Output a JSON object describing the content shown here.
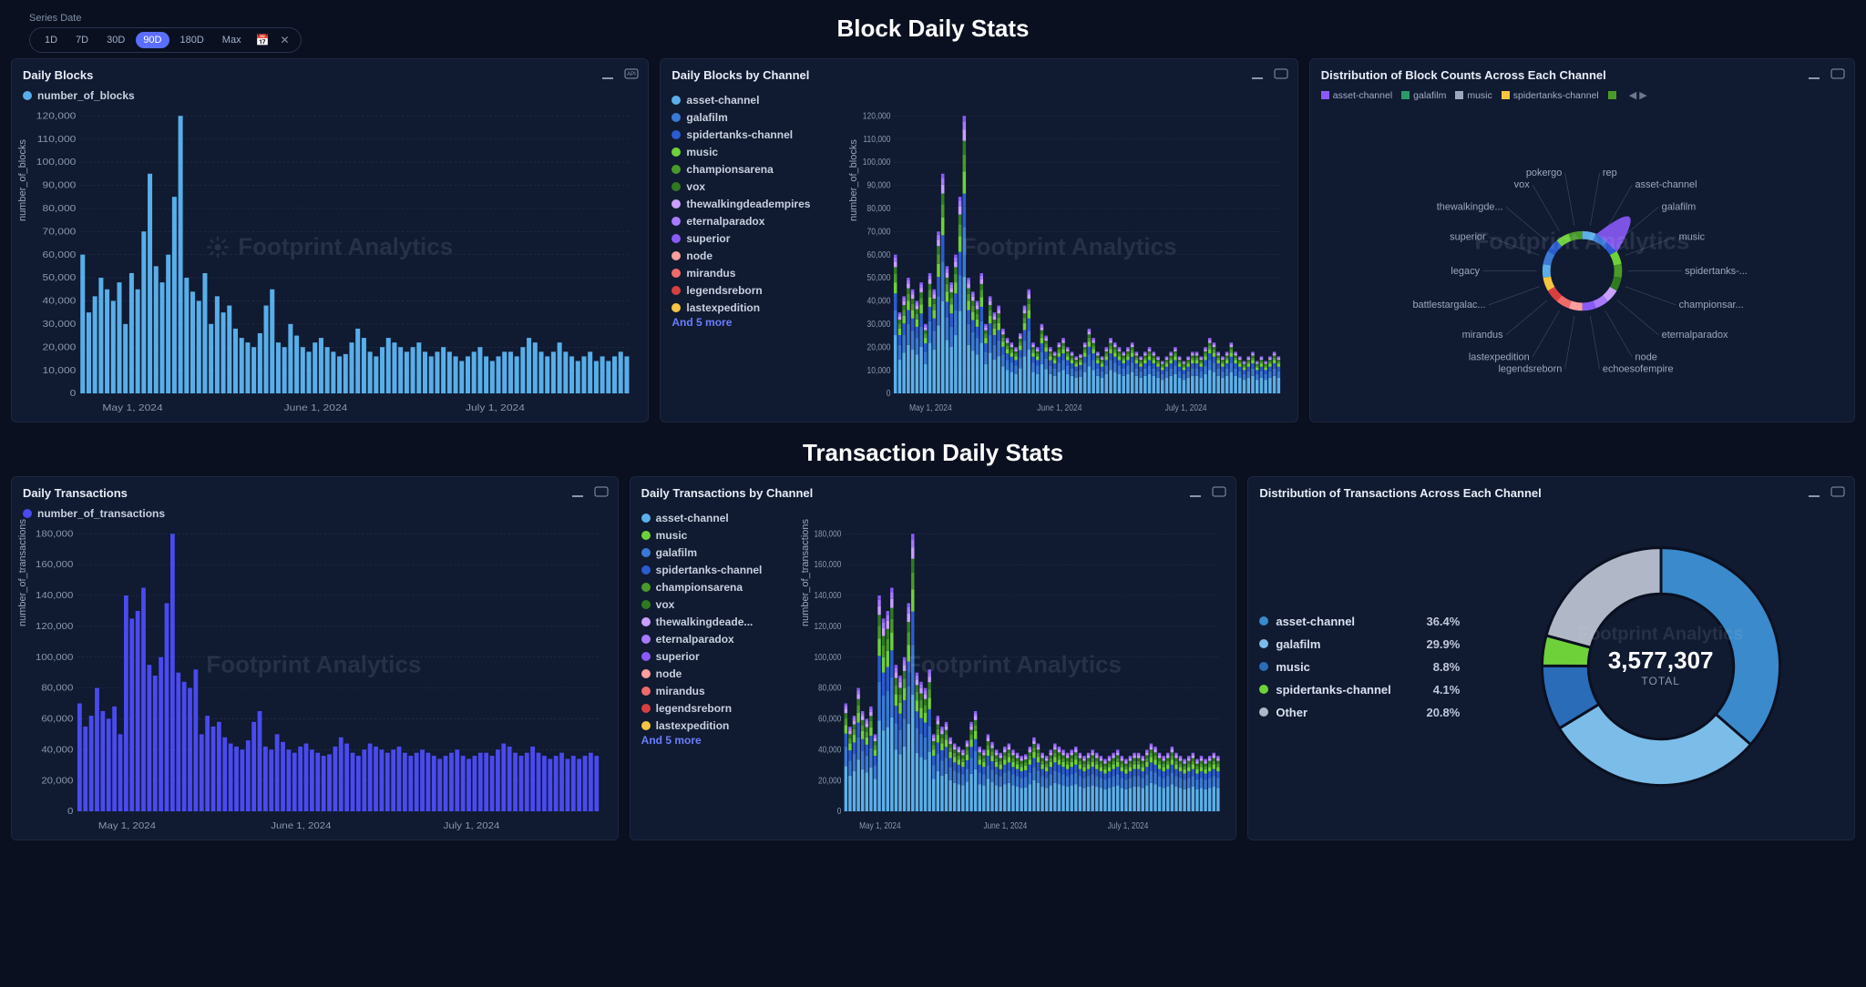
{
  "watermark": "Footprint Analytics",
  "colors": {
    "bg": "#0a1020",
    "panel": "#101a30",
    "grid": "#2a3858",
    "blockBar": "#58aee8",
    "txnBar": "#4a4af0"
  },
  "timeRange": {
    "label": "Series Date",
    "options": [
      "1D",
      "7D",
      "30D",
      "90D",
      "180D",
      "Max"
    ],
    "active": "90D"
  },
  "sections": {
    "blocks": {
      "title": "Block Daily Stats"
    },
    "txns": {
      "title": "Transaction Daily Stats"
    }
  },
  "channels": [
    {
      "name": "asset-channel",
      "color": "#5bb0ea"
    },
    {
      "name": "galafilm",
      "color": "#3a7ad6"
    },
    {
      "name": "spidertanks-channel",
      "color": "#2a5bd0"
    },
    {
      "name": "music",
      "color": "#6fd13a"
    },
    {
      "name": "championsarena",
      "color": "#4a9a2a"
    },
    {
      "name": "vox",
      "color": "#2f7a1f"
    },
    {
      "name": "thewalkingdeadempires",
      "color": "#c9a0ff"
    },
    {
      "name": "eternalparadox",
      "color": "#a77aff"
    },
    {
      "name": "superior",
      "color": "#8a5af8"
    },
    {
      "name": "node",
      "color": "#ff9e9e"
    },
    {
      "name": "mirandus",
      "color": "#f06a6a"
    },
    {
      "name": "legendsreborn",
      "color": "#d84040"
    },
    {
      "name": "lastexpedition",
      "color": "#f5c542"
    }
  ],
  "channels_more_label": "And 5 more",
  "dailyBlocks": {
    "title": "Daily Blocks",
    "series_label": "number_of_blocks",
    "ylabel": "number_of_blocks",
    "ymax": 120000,
    "ytick": 10000,
    "xticks": [
      "May 1, 2024",
      "June 1, 2024",
      "July 1, 2024"
    ],
    "values": [
      60000,
      35000,
      42000,
      50000,
      45000,
      40000,
      48000,
      30000,
      52000,
      45000,
      70000,
      95000,
      55000,
      48000,
      60000,
      85000,
      120000,
      50000,
      44000,
      40000,
      52000,
      30000,
      42000,
      35000,
      38000,
      28000,
      24000,
      22000,
      20000,
      26000,
      38000,
      45000,
      22000,
      20000,
      30000,
      25000,
      20000,
      18000,
      22000,
      24000,
      20000,
      18000,
      16000,
      17000,
      22000,
      28000,
      24000,
      18000,
      16000,
      20000,
      24000,
      22000,
      20000,
      18000,
      20000,
      22000,
      18000,
      16000,
      18000,
      20000,
      18000,
      16000,
      14000,
      16000,
      18000,
      20000,
      16000,
      14000,
      16000,
      18000,
      18000,
      16000,
      20000,
      24000,
      22000,
      18000,
      16000,
      18000,
      22000,
      18000,
      16000,
      14000,
      16000,
      18000,
      14000,
      16000,
      14000,
      16000,
      18000,
      16000
    ]
  },
  "dailyBlocksByChannel": {
    "title": "Daily Blocks by Channel",
    "ylabel": "number_of_blocks",
    "ymax": 120000,
    "ytick": 10000,
    "xticks": [
      "May 1, 2024",
      "June 1, 2024",
      "July 1, 2024"
    ]
  },
  "blockDistribution": {
    "title": "Distribution of Block Counts Across Each Channel",
    "legend": [
      {
        "name": "asset-channel",
        "color": "#8a5af8"
      },
      {
        "name": "galafilm",
        "color": "#2a9a6a"
      },
      {
        "name": "music",
        "color": "#9aa8c0"
      },
      {
        "name": "spidertanks-channel",
        "color": "#f5c542"
      }
    ],
    "spokes": [
      "rep",
      "asset-channel",
      "galafilm",
      "music",
      "spidertanks-...",
      "championsar...",
      "eternalparadox",
      "node",
      "echoesofempire",
      "legendsreborn",
      "lastexpedition",
      "mirandus",
      "battlestargalac...",
      "legacy",
      "superior",
      "thewalkingde...",
      "vox",
      "pokergo"
    ]
  },
  "dailyTxns": {
    "title": "Daily Transactions",
    "series_label": "number_of_transactions",
    "ylabel": "number_of_transactions",
    "ymax": 180000,
    "ytick": 20000,
    "xticks": [
      "May 1, 2024",
      "June 1, 2024",
      "July 1, 2024"
    ],
    "values": [
      70000,
      55000,
      62000,
      80000,
      65000,
      60000,
      68000,
      50000,
      140000,
      125000,
      130000,
      145000,
      95000,
      88000,
      100000,
      135000,
      180000,
      90000,
      84000,
      80000,
      92000,
      50000,
      62000,
      55000,
      58000,
      48000,
      44000,
      42000,
      40000,
      46000,
      58000,
      65000,
      42000,
      40000,
      50000,
      45000,
      40000,
      38000,
      42000,
      44000,
      40000,
      38000,
      36000,
      37000,
      42000,
      48000,
      44000,
      38000,
      36000,
      40000,
      44000,
      42000,
      40000,
      38000,
      40000,
      42000,
      38000,
      36000,
      38000,
      40000,
      38000,
      36000,
      34000,
      36000,
      38000,
      40000,
      36000,
      34000,
      36000,
      38000,
      38000,
      36000,
      40000,
      44000,
      42000,
      38000,
      36000,
      38000,
      42000,
      38000,
      36000,
      34000,
      36000,
      38000,
      34000,
      36000,
      34000,
      36000,
      38000,
      36000
    ]
  },
  "dailyTxnsByChannel": {
    "title": "Daily Transactions by Channel",
    "ylabel": "number_of_transactions",
    "ymax": 180000,
    "ytick": 20000,
    "xticks": [
      "May 1, 2024",
      "June 1, 2024",
      "July 1, 2024"
    ],
    "channels_order": [
      "asset-channel",
      "music",
      "galafilm",
      "spidertanks-channel",
      "championsarena",
      "vox",
      "thewalkingdeade...",
      "eternalparadox",
      "superior",
      "node",
      "mirandus",
      "legendsreborn",
      "lastexpedition"
    ]
  },
  "txnDistribution": {
    "title": "Distribution of Transactions Across Each Channel",
    "total": "3,577,307",
    "total_label": "TOTAL",
    "slices": [
      {
        "name": "asset-channel",
        "pct": 36.4,
        "color": "#3a8acc",
        "label": "36.4%"
      },
      {
        "name": "galafilm",
        "pct": 29.9,
        "color": "#7cbce8",
        "label": "29.9%"
      },
      {
        "name": "music",
        "pct": 8.8,
        "color": "#2a6cb8",
        "label": "8.8%"
      },
      {
        "name": "spidertanks-channel",
        "pct": 4.1,
        "color": "#6fd13a",
        "label": "4.1%"
      },
      {
        "name": "Other",
        "pct": 20.8,
        "color": "#b0b8c8",
        "label": "20.8%"
      }
    ]
  }
}
